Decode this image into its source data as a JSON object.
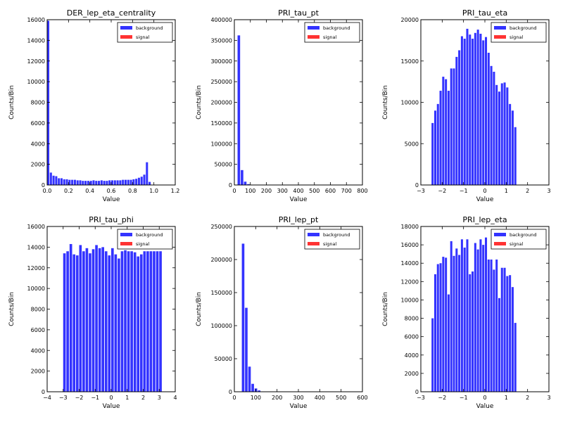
{
  "chart_data": [
    {
      "type": "bar",
      "title": "DER_lep_eta_centrality",
      "xlabel": "Value",
      "ylabel": "Counts/Bin",
      "xlim": [
        0.0,
        1.2
      ],
      "ylim": [
        0,
        16000
      ],
      "xticks": [
        0.0,
        0.2,
        0.4,
        0.6,
        0.8,
        1.0,
        1.2
      ],
      "xtick_labels": [
        "0.0",
        "0.2",
        "0.4",
        "0.6",
        "0.8",
        "1.0",
        "1.2"
      ],
      "yticks": [
        0,
        2000,
        4000,
        6000,
        8000,
        10000,
        12000,
        14000,
        16000
      ],
      "ytick_labels": [
        "0",
        "2000",
        "4000",
        "6000",
        "8000",
        "10000",
        "12000",
        "14000",
        "16000"
      ],
      "legend": [
        "background",
        "signal"
      ],
      "legend_position": "top-right",
      "series": [
        {
          "name": "background",
          "color": "#3333ff",
          "x": [
            0.0,
            0.025,
            0.05,
            0.075,
            0.1,
            0.125,
            0.15,
            0.175,
            0.2,
            0.225,
            0.25,
            0.275,
            0.3,
            0.325,
            0.35,
            0.375,
            0.4,
            0.425,
            0.45,
            0.475,
            0.5,
            0.525,
            0.55,
            0.575,
            0.6,
            0.625,
            0.65,
            0.675,
            0.7,
            0.725,
            0.75,
            0.775,
            0.8,
            0.825,
            0.85,
            0.875,
            0.9,
            0.925,
            0.95,
            0.975,
            1.0
          ],
          "values": [
            15900,
            1200,
            900,
            850,
            650,
            650,
            550,
            550,
            500,
            500,
            500,
            450,
            450,
            400,
            400,
            400,
            400,
            450,
            400,
            400,
            450,
            400,
            400,
            450,
            450,
            450,
            450,
            450,
            500,
            500,
            500,
            500,
            550,
            600,
            700,
            800,
            1000,
            2200,
            300,
            0,
            0
          ]
        },
        {
          "name": "signal",
          "color": "#ff3333",
          "x": [],
          "values": []
        }
      ]
    },
    {
      "type": "bar",
      "title": "PRI_tau_pt",
      "xlabel": "Value",
      "ylabel": "Counts/Bin",
      "xlim": [
        0,
        800
      ],
      "ylim": [
        0,
        400000
      ],
      "xticks": [
        0,
        100,
        200,
        300,
        400,
        500,
        600,
        700,
        800
      ],
      "xtick_labels": [
        "0",
        "100",
        "200",
        "300",
        "400",
        "500",
        "600",
        "700",
        "800"
      ],
      "yticks": [
        0,
        50000,
        100000,
        150000,
        200000,
        250000,
        300000,
        350000,
        400000
      ],
      "ytick_labels": [
        "0",
        "50000",
        "100000",
        "150000",
        "200000",
        "250000",
        "300000",
        "350000",
        "400000"
      ],
      "legend": [
        "background",
        "signal"
      ],
      "legend_position": "top-right",
      "series": [
        {
          "name": "background",
          "color": "#3333ff",
          "x": [
            20,
            40,
            60,
            80,
            100
          ],
          "values": [
            362000,
            36000,
            8000,
            2000,
            500
          ]
        },
        {
          "name": "signal",
          "color": "#ff3333",
          "x": [],
          "values": []
        }
      ]
    },
    {
      "type": "bar",
      "title": "PRI_tau_eta",
      "xlabel": "Value",
      "ylabel": "Counts/Bin",
      "xlim": [
        -3,
        3
      ],
      "ylim": [
        0,
        20000
      ],
      "xticks": [
        -3,
        -2,
        -1,
        0,
        1,
        2,
        3
      ],
      "xtick_labels": [
        "−3",
        "−2",
        "−1",
        "0",
        "1",
        "2",
        "3"
      ],
      "yticks": [
        0,
        5000,
        10000,
        15000,
        20000
      ],
      "ytick_labels": [
        "0",
        "5000",
        "10000",
        "15000",
        "20000"
      ],
      "legend": [
        "background",
        "signal"
      ],
      "legend_position": "top-right",
      "series": [
        {
          "name": "background",
          "color": "#3333ff",
          "x": [
            -2.5,
            -2.375,
            -2.25,
            -2.125,
            -2.0,
            -1.875,
            -1.75,
            -1.625,
            -1.5,
            -1.375,
            -1.25,
            -1.125,
            -1.0,
            -0.875,
            -0.75,
            -0.625,
            -0.5,
            -0.375,
            -0.25,
            -0.125,
            0.0,
            0.125,
            0.25,
            0.375,
            0.5,
            0.625,
            0.75,
            0.875,
            1.0,
            1.125,
            1.25,
            1.375,
            1.5,
            1.625,
            1.75,
            1.875,
            2.0,
            2.125,
            2.25,
            2.375
          ],
          "values": [
            7500,
            9000,
            9800,
            11400,
            13100,
            12800,
            11400,
            14100,
            14100,
            15500,
            16300,
            18000,
            17700,
            18900,
            18200,
            17700,
            18400,
            18800,
            18300,
            17500,
            17900,
            16000,
            14400,
            13700,
            12100,
            11300,
            12300,
            12400,
            11800,
            9800,
            9000,
            7000,
            0,
            0,
            0,
            0,
            0,
            0,
            0,
            0
          ]
        },
        {
          "name": "signal",
          "color": "#ff3333",
          "x": [],
          "values": []
        }
      ]
    },
    {
      "type": "bar",
      "title": "PRI_tau_phi",
      "xlabel": "Value",
      "ylabel": "Counts/Bin",
      "xlim": [
        -4,
        4
      ],
      "ylim": [
        0,
        16000
      ],
      "xticks": [
        -4,
        -3,
        -2,
        -1,
        0,
        1,
        2,
        3,
        4
      ],
      "xtick_labels": [
        "−4",
        "−3",
        "−2",
        "−1",
        "0",
        "1",
        "2",
        "3",
        "4"
      ],
      "yticks": [
        0,
        2000,
        4000,
        6000,
        8000,
        10000,
        12000,
        14000,
        16000
      ],
      "ytick_labels": [
        "0",
        "2000",
        "4000",
        "6000",
        "8000",
        "10000",
        "12000",
        "14000",
        "16000"
      ],
      "legend": [
        "background",
        "signal"
      ],
      "legend_position": "top-right",
      "series": [
        {
          "name": "background",
          "color": "#3333ff",
          "x": [
            -3.0,
            -2.8,
            -2.6,
            -2.4,
            -2.2,
            -2.0,
            -1.8,
            -1.6,
            -1.4,
            -1.2,
            -1.0,
            -0.8,
            -0.6,
            -0.4,
            -0.2,
            0.0,
            0.2,
            0.4,
            0.6,
            0.8,
            1.0,
            1.2,
            1.4,
            1.6,
            1.8,
            2.0,
            2.2,
            2.4,
            2.6,
            2.8,
            3.0
          ],
          "values": [
            13400,
            13600,
            14300,
            13300,
            13200,
            14200,
            13600,
            13900,
            13400,
            13800,
            14200,
            13900,
            14000,
            13600,
            13200,
            13900,
            13300,
            12900,
            13600,
            13700,
            13600,
            13600,
            13500,
            13100,
            13300,
            13600,
            13600,
            13600,
            13600,
            13600,
            13600
          ]
        },
        {
          "name": "signal",
          "color": "#ff3333",
          "x": [],
          "values": []
        }
      ]
    },
    {
      "type": "bar",
      "title": "PRI_lep_pt",
      "xlabel": "Value",
      "ylabel": "Counts/Bin",
      "xlim": [
        0,
        600
      ],
      "ylim": [
        0,
        250000
      ],
      "xticks": [
        0,
        100,
        200,
        300,
        400,
        500,
        600
      ],
      "xtick_labels": [
        "0",
        "100",
        "200",
        "300",
        "400",
        "500",
        "600"
      ],
      "yticks": [
        0,
        50000,
        100000,
        150000,
        200000,
        250000
      ],
      "ytick_labels": [
        "0",
        "50000",
        "100000",
        "150000",
        "200000",
        "250000"
      ],
      "legend": [
        "background",
        "signal"
      ],
      "legend_position": "top-right",
      "series": [
        {
          "name": "background",
          "color": "#3333ff",
          "x": [
            35,
            50,
            65,
            80,
            95,
            110,
            125
          ],
          "values": [
            224000,
            127000,
            38000,
            12000,
            5000,
            2000,
            500
          ]
        },
        {
          "name": "signal",
          "color": "#ff3333",
          "x": [],
          "values": []
        }
      ]
    },
    {
      "type": "bar",
      "title": "PRI_lep_eta",
      "xlabel": "Value",
      "ylabel": "Counts/Bin",
      "xlim": [
        -3,
        3
      ],
      "ylim": [
        0,
        18000
      ],
      "xticks": [
        -3,
        -2,
        -1,
        0,
        1,
        2,
        3
      ],
      "xtick_labels": [
        "−3",
        "−2",
        "−1",
        "0",
        "1",
        "2",
        "3"
      ],
      "yticks": [
        0,
        2000,
        4000,
        6000,
        8000,
        10000,
        12000,
        14000,
        16000,
        18000
      ],
      "ytick_labels": [
        "0",
        "2000",
        "4000",
        "6000",
        "8000",
        "10000",
        "12000",
        "14000",
        "16000",
        "18000"
      ],
      "legend": [
        "background",
        "signal"
      ],
      "legend_position": "top-right",
      "series": [
        {
          "name": "background",
          "color": "#3333ff",
          "x": [
            -2.5,
            -2.375,
            -2.25,
            -2.125,
            -2.0,
            -1.875,
            -1.75,
            -1.625,
            -1.5,
            -1.375,
            -1.25,
            -1.125,
            -1.0,
            -0.875,
            -0.75,
            -0.625,
            -0.5,
            -0.375,
            -0.25,
            -0.125,
            0.0,
            0.125,
            0.25,
            0.375,
            0.5,
            0.625,
            0.75,
            0.875,
            1.0,
            1.125,
            1.25,
            1.375,
            1.5,
            1.625,
            1.75,
            1.875,
            2.0,
            2.125,
            2.25,
            2.375
          ],
          "values": [
            8000,
            12800,
            13900,
            14000,
            14700,
            14600,
            10600,
            16400,
            14800,
            15600,
            14900,
            16600,
            15700,
            16600,
            12800,
            13100,
            16200,
            15500,
            16600,
            16000,
            16800,
            14400,
            14400,
            13300,
            14400,
            10200,
            13500,
            13500,
            12600,
            12700,
            11400,
            7500,
            0,
            0,
            0,
            0,
            0,
            0,
            0,
            0
          ]
        },
        {
          "name": "signal",
          "color": "#ff3333",
          "x": [],
          "values": []
        }
      ]
    }
  ]
}
